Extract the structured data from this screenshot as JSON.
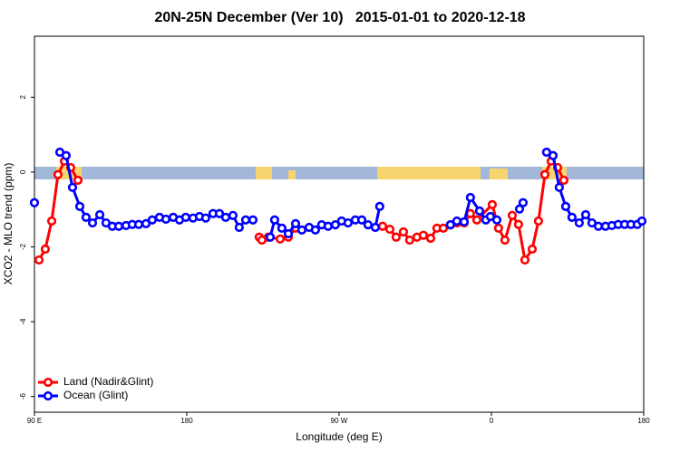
{
  "chart_data": {
    "type": "line",
    "title": "20N-25N December (Ver 10)   2015-01-01 to 2020-12-18",
    "x_label": "Longitude (deg E)",
    "y_label": "XCO2 - MLO trend (ppm)",
    "xlim": [
      90,
      450
    ],
    "xticks": [
      {
        "value": 90,
        "label": "90 E"
      },
      180,
      {
        "value": 270,
        "label": "90 W"
      },
      {
        "value": 360,
        "label": "0"
      },
      {
        "value": 450,
        "label": "180"
      }
    ],
    "ylim": [
      -6.42,
      3.63
    ],
    "yticks": [
      -6,
      -4,
      -2,
      0,
      2
    ],
    "legend": "bottom-left",
    "series": [
      {
        "name": "Land (Nadir&Glint)",
        "color": "#ff0000",
        "x": [
          92.7,
          96.4,
          100.2,
          103.9,
          107.7,
          111.4,
          115.7,
          120,
          222.8,
          224.4,
          228.2,
          235.2,
          240,
          244.3,
          270,
          295.7,
          300,
          303.7,
          308,
          311.7,
          316,
          319.8,
          324.1,
          327.8,
          331.6,
          335.8,
          339.6,
          343.9,
          347.6,
          351.4,
          360.5,
          364.2,
          368,
          372.3,
          376,
          379.8,
          384.1,
          387.8,
          391.6,
          395.3,
          399.1,
          402.8
        ],
        "values": [
          -2.35,
          -2.06,
          -1.31,
          -0.07,
          0.29,
          0.12,
          -0.22,
          null,
          -1.74,
          -1.82,
          -1.74,
          -1.79,
          -1.74,
          -1.5,
          null,
          -1.45,
          -1.53,
          -1.74,
          -1.6,
          -1.82,
          -1.74,
          -1.69,
          -1.77,
          -1.5,
          -1.5,
          -1.41,
          -1.36,
          -1.36,
          -1.11,
          -1.28,
          -0.87,
          -1.5,
          -1.82,
          -1.16,
          -1.4,
          -2.35,
          -2.06,
          -1.31,
          -0.07,
          0.29,
          0.12,
          -0.22
        ]
      },
      {
        "name": "Ocean (Glint)",
        "color": "#0000ff",
        "x": [
          90,
          100,
          105,
          108.7,
          112.5,
          116.8,
          120.5,
          124.3,
          128.6,
          132.3,
          136,
          139.8,
          144.1,
          147.8,
          151.6,
          155.9,
          159.6,
          163.9,
          167.7,
          172,
          175.7,
          179.4,
          183.7,
          187.5,
          191.2,
          195.5,
          199.3,
          203,
          207.3,
          211,
          214.8,
          219.1,
          225,
          229.3,
          231.9,
          236.2,
          240,
          244.3,
          248,
          252.3,
          256,
          259.7,
          263.5,
          267.8,
          271.5,
          275.3,
          279.6,
          283.4,
          287.1,
          291.4,
          294,
          320,
          335.8,
          339.6,
          343.9,
          347.6,
          353,
          356.7,
          359.4,
          363.2,
          370,
          376.6,
          378.7,
          385,
          392.6,
          396.4,
          400.1,
          403.9,
          407.6,
          411.9,
          415.7,
          419.4,
          423.2,
          427.4,
          431.2,
          434.9,
          438.7,
          442.4,
          446.2,
          448.9
        ],
        "values": [
          -0.82,
          null,
          0.53,
          0.44,
          -0.41,
          -0.92,
          -1.21,
          -1.36,
          -1.14,
          -1.36,
          -1.45,
          -1.45,
          -1.43,
          -1.4,
          -1.4,
          -1.38,
          -1.28,
          -1.21,
          -1.26,
          -1.21,
          -1.28,
          -1.21,
          -1.23,
          -1.19,
          -1.23,
          -1.11,
          -1.11,
          -1.21,
          -1.16,
          -1.48,
          -1.28,
          -1.28,
          null,
          -1.74,
          -1.28,
          -1.5,
          -1.65,
          -1.38,
          -1.55,
          -1.48,
          -1.55,
          -1.41,
          -1.45,
          -1.41,
          -1.31,
          -1.36,
          -1.28,
          -1.28,
          -1.41,
          -1.48,
          -0.92,
          null,
          -1.41,
          -1.31,
          -1.33,
          -0.68,
          -1.04,
          -1.28,
          -1.19,
          -1.28,
          null,
          -0.99,
          -0.82,
          null,
          0.53,
          0.44,
          -0.41,
          -0.92,
          -1.21,
          -1.36,
          -1.14,
          -1.36,
          -1.45,
          -1.45,
          -1.43,
          -1.4,
          -1.4,
          -1.4,
          -1.4,
          -1.31
        ]
      }
    ]
  }
}
